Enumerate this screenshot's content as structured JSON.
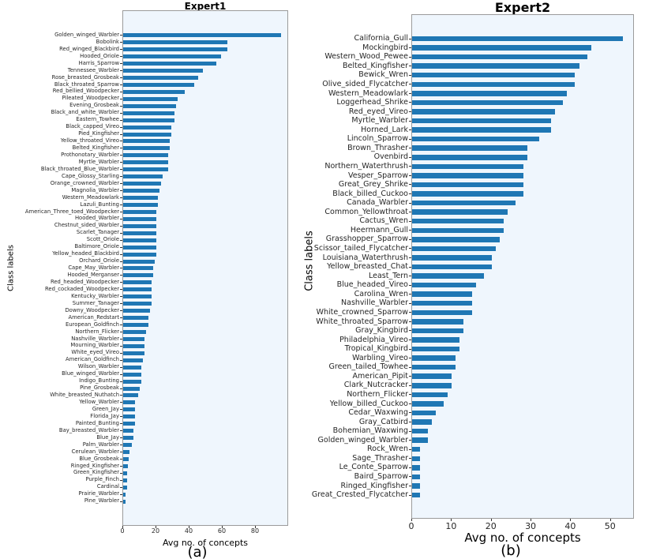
{
  "chart_data": [
    {
      "type": "bar",
      "orientation": "horizontal",
      "title": "Expert1",
      "xlabel": "Avg no. of concepts",
      "ylabel": "Class labels",
      "caption": "(a)",
      "xlim": [
        0,
        100
      ],
      "xticks": [
        0,
        20,
        40,
        60,
        80
      ],
      "grid": false,
      "legend": false,
      "bar_color": "#1f77b4",
      "plot_bg": "#eff6fd",
      "categories": [
        "Golden_winged_Warbler",
        "Bobolink",
        "Red_winged_Blackbird",
        "Hooded_Oriole",
        "Harris_Sparrow",
        "Tennessee_Warbler",
        "Rose_breasted_Grosbeak",
        "Black_throated_Sparrow",
        "Red_bellied_Woodpecker",
        "Pileated_Woodpecker",
        "Evening_Grosbeak",
        "Black_and_white_Warbler",
        "Eastern_Towhee",
        "Black_capped_Vireo",
        "Pied_Kingfisher",
        "Yellow_throated_Vireo",
        "Belted_Kingfisher",
        "Prothonotary_Warbler",
        "Myrtle_Warbler",
        "Black_throated_Blue_Warbler",
        "Cape_Glossy_Starling",
        "Orange_crowned_Warbler",
        "Magnolia_Warbler",
        "Western_Meadowlark",
        "Lazuli_Bunting",
        "American_Three_toed_Woodpecker",
        "Hooded_Warbler",
        "Chestnut_sided_Warbler",
        "Scarlet_Tanager",
        "Scott_Oriole",
        "Baltimore_Oriole",
        "Yellow_headed_Blackbird",
        "Orchard_Oriole",
        "Cape_May_Warbler",
        "Hooded_Merganser",
        "Red_headed_Woodpecker",
        "Red_cockaded_Woodpecker",
        "Kentucky_Warbler",
        "Summer_Tanager",
        "Downy_Woodpecker",
        "American_Redstart",
        "European_Goldfinch",
        "Northern_Flicker",
        "Nashville_Warbler",
        "Mourning_Warbler",
        "White_eyed_Vireo",
        "American_Goldfinch",
        "Wilson_Warbler",
        "Blue_winged_Warbler",
        "Indigo_Bunting",
        "Pine_Grosbeak",
        "White_breasted_Nuthatch",
        "Yellow_Warbler",
        "Green_Jay",
        "Florida_Jay",
        "Painted_Bunting",
        "Bay_breasted_Warbler",
        "Blue_Jay",
        "Palm_Warbler",
        "Cerulean_Warbler",
        "Blue_Grosbeak",
        "Ringed_Kingfisher",
        "Green_Kingfisher",
        "Purple_Finch",
        "Cardinal",
        "Prairie_Warbler",
        "Pine_Warbler"
      ],
      "values": [
        95,
        63,
        63,
        59,
        56,
        48,
        45,
        43,
        37,
        33,
        32,
        31,
        31,
        29,
        29,
        28,
        28,
        27,
        27,
        27,
        24,
        23,
        22,
        21,
        21,
        20,
        20,
        20,
        20,
        20,
        20,
        20,
        19,
        18,
        18,
        17,
        17,
        17,
        17,
        16,
        15,
        15,
        14,
        13,
        13,
        13,
        12,
        11,
        11,
        11,
        10,
        9,
        7,
        7,
        7,
        7,
        6,
        6,
        5,
        4,
        3.5,
        3,
        2.5,
        2.5,
        2.5,
        1.5,
        1.5
      ]
    },
    {
      "type": "bar",
      "orientation": "horizontal",
      "title": "Expert2",
      "xlabel": "Avg no. of concepts",
      "ylabel": "Class labels",
      "caption": "(b)",
      "xlim": [
        0,
        56
      ],
      "xticks": [
        0,
        10,
        20,
        30,
        40,
        50
      ],
      "grid": false,
      "legend": false,
      "bar_color": "#1f77b4",
      "plot_bg": "#eff6fd",
      "categories": [
        "California_Gull",
        "Mockingbird",
        "Western_Wood_Pewee",
        "Belted_Kingfisher",
        "Bewick_Wren",
        "Olive_sided_Flycatcher",
        "Western_Meadowlark",
        "Loggerhead_Shrike",
        "Red_eyed_Vireo",
        "Myrtle_Warbler",
        "Horned_Lark",
        "Lincoln_Sparrow",
        "Brown_Thrasher",
        "Ovenbird",
        "Northern_Waterthrush",
        "Vesper_Sparrow",
        "Great_Grey_Shrike",
        "Black_billed_Cuckoo",
        "Canada_Warbler",
        "Common_Yellowthroat",
        "Cactus_Wren",
        "Heermann_Gull",
        "Grasshopper_Sparrow",
        "Scissor_tailed_Flycatcher",
        "Louisiana_Waterthrush",
        "Yellow_breasted_Chat",
        "Least_Tern",
        "Blue_headed_Vireo",
        "Carolina_Wren",
        "Nashville_Warbler",
        "White_crowned_Sparrow",
        "White_throated_Sparrow",
        "Gray_Kingbird",
        "Philadelphia_Vireo",
        "Tropical_Kingbird",
        "Warbling_Vireo",
        "Green_tailed_Towhee",
        "American_Pipit",
        "Clark_Nutcracker",
        "Northern_Flicker",
        "Yellow_billed_Cuckoo",
        "Cedar_Waxwing",
        "Gray_Catbird",
        "Bohemian_Waxwing",
        "Golden_winged_Warbler",
        "Rock_Wren",
        "Sage_Thrasher",
        "Le_Conte_Sparrow",
        "Baird_Sparrow",
        "Ringed_Kingfisher",
        "Great_Crested_Flycatcher"
      ],
      "values": [
        53,
        45,
        44,
        42,
        41,
        41,
        39,
        38,
        36,
        35,
        35,
        32,
        29,
        29,
        28,
        28,
        28,
        28,
        26,
        24,
        23,
        23,
        22,
        21,
        20,
        20,
        18,
        16,
        15,
        15,
        15,
        13,
        13,
        12,
        12,
        11,
        11,
        10,
        10,
        9,
        8,
        6,
        5,
        4,
        4,
        2,
        2,
        2,
        2,
        2,
        2
      ]
    }
  ]
}
